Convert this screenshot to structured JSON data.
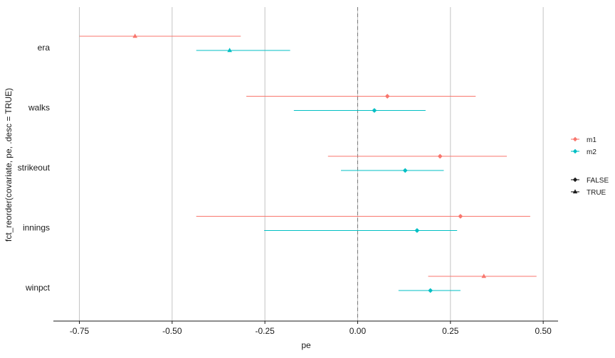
{
  "chart_data": {
    "type": "dot-whisker",
    "xlabel": "pe",
    "ylabel": "fct_reorder(covariate, pe, .desc = TRUE)",
    "xlim": [
      -0.82,
      0.54
    ],
    "x_ticks": [
      -0.75,
      -0.5,
      -0.25,
      0.0,
      0.25,
      0.5
    ],
    "x_tick_labels": [
      "-0.75",
      "-0.50",
      "-0.25",
      "0.00",
      "0.25",
      "0.50"
    ],
    "reference_line": 0.0,
    "grid": {
      "major_vertical": true,
      "horizontal": false
    },
    "categories": [
      "era",
      "walks",
      "strikeout",
      "innings",
      "winpct"
    ],
    "series": [
      {
        "name": "m1",
        "color": "#F8766D",
        "points": [
          {
            "category": "era",
            "pe": -0.6,
            "lo": -0.75,
            "hi": -0.315,
            "significant": "TRUE"
          },
          {
            "category": "walks",
            "pe": 0.08,
            "lo": -0.3,
            "hi": 0.318,
            "significant": "FALSE"
          },
          {
            "category": "strikeout",
            "pe": 0.222,
            "lo": -0.08,
            "hi": 0.402,
            "significant": "FALSE"
          },
          {
            "category": "innings",
            "pe": 0.277,
            "lo": -0.435,
            "hi": 0.465,
            "significant": "FALSE"
          },
          {
            "category": "winpct",
            "pe": 0.34,
            "lo": 0.19,
            "hi": 0.482,
            "significant": "TRUE"
          }
        ]
      },
      {
        "name": "m2",
        "color": "#00BFC4",
        "points": [
          {
            "category": "era",
            "pe": -0.345,
            "lo": -0.435,
            "hi": -0.182,
            "significant": "TRUE"
          },
          {
            "category": "walks",
            "pe": 0.045,
            "lo": -0.172,
            "hi": 0.183,
            "significant": "FALSE"
          },
          {
            "category": "strikeout",
            "pe": 0.128,
            "lo": -0.045,
            "hi": 0.232,
            "significant": "FALSE"
          },
          {
            "category": "innings",
            "pe": 0.16,
            "lo": -0.252,
            "hi": 0.268,
            "significant": "FALSE"
          },
          {
            "category": "winpct",
            "pe": 0.196,
            "lo": 0.11,
            "hi": 0.277,
            "significant": "FALSE"
          }
        ]
      }
    ],
    "legend": {
      "position": "right",
      "colour_entries": [
        {
          "label": "m1",
          "color": "#F8766D"
        },
        {
          "label": "m2",
          "color": "#00BFC4"
        }
      ],
      "shape_entries": [
        {
          "label": "FALSE",
          "shape": "diamond"
        },
        {
          "label": "TRUE",
          "shape": "triangle"
        }
      ]
    }
  }
}
